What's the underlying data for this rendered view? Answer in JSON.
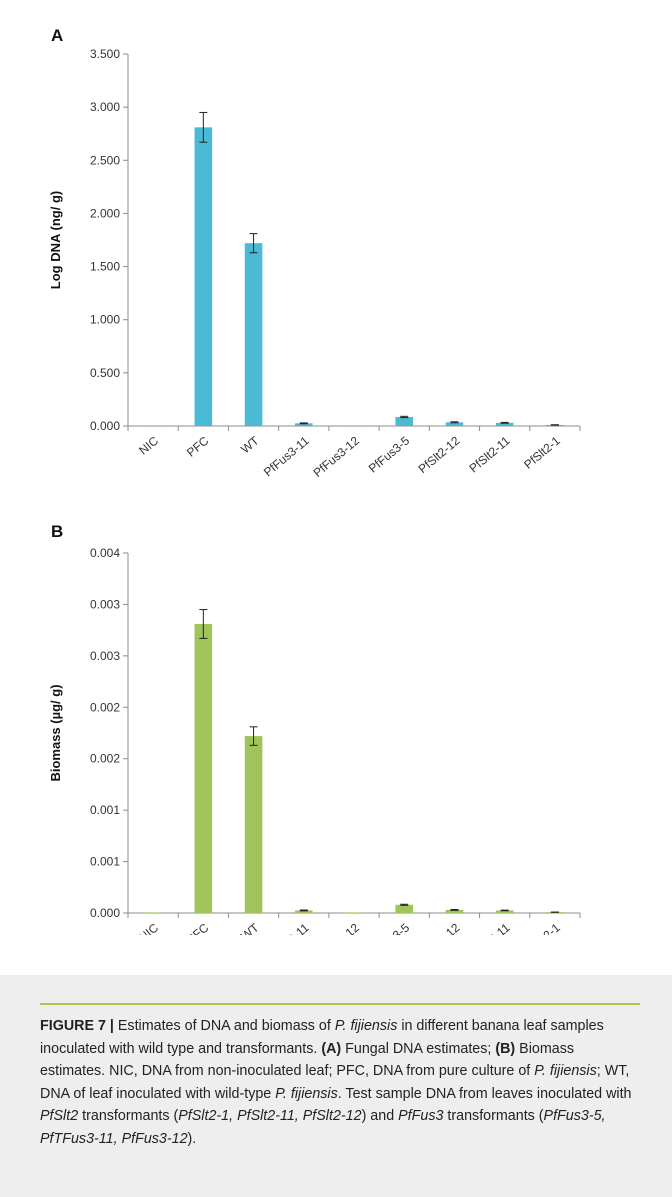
{
  "panels": [
    {
      "label": "A",
      "chart_data": {
        "type": "bar",
        "categories": [
          "NIC",
          "PFC",
          "WT",
          "PfFus3-11",
          "PfFus3-12",
          "PfFus3-5",
          "PfSlt2-12",
          "PfSlt2-11",
          "PfSlt2-1"
        ],
        "values": [
          0.002,
          2.81,
          1.72,
          0.025,
          0.003,
          0.085,
          0.035,
          0.03,
          0.01
        ],
        "errors": [
          0.0,
          0.14,
          0.09,
          0.004,
          0.0,
          0.006,
          0.005,
          0.004,
          0.002
        ],
        "ylabel": "Log DNA (ng/ g)",
        "ylim": [
          0,
          3.5
        ],
        "yticks": [
          "0.000",
          "0.500",
          "1.000",
          "1.500",
          "2.000",
          "2.500",
          "3.000",
          "3.500"
        ],
        "bar_color": "#4bbad4",
        "grid": false
      }
    },
    {
      "label": "B",
      "chart_data": {
        "type": "bar",
        "categories": [
          "NIC",
          "PFC",
          "WT",
          "PfFus3-11",
          "PfFus3-12",
          "PfFus3-5",
          "PfSlt2-12",
          "PfSlt2-11",
          "PfSlt2-1"
        ],
        "values": [
          0.0,
          0.00281,
          0.00172,
          2.5e-05,
          0.0,
          8e-05,
          3e-05,
          2.5e-05,
          8e-06
        ],
        "errors": [
          0.0,
          0.00014,
          9e-05,
          4e-06,
          0.0,
          5e-06,
          4e-06,
          3e-06,
          1e-06
        ],
        "ylabel": "Biomass (µg/ g)",
        "ylim": [
          0,
          0.0035
        ],
        "yticks": [
          "0.000",
          "0.001",
          "0.001",
          "0.002",
          "0.002",
          "0.003",
          "0.003",
          "0.004"
        ],
        "bar_color": "#9fc45a",
        "grid": false
      }
    }
  ],
  "caption": {
    "figure_label": "FIGURE 7 |",
    "text_html": " Estimates of DNA and biomass of <i>P. fijiensis</i> in different banana leaf samples inoculated with wild type and transformants. <b>(A)</b> Fungal DNA estimates; <b>(B)</b> Biomass estimates. NIC, DNA from non-inoculated leaf; PFC, DNA from pure culture of <i>P. fijiensis</i>; WT, DNA of leaf inoculated with wild-type <i>P. fijiensis</i>. Test sample DNA from leaves inoculated with <i>PfSlt2</i> transformants (<i>PfSlt2-1, PfSlt2-11, PfSlt2-12</i>) and <i>PfFus3</i> transformants (<i>PfFus3-5, PfTFus3-11, PfFus3-12</i>)."
  }
}
